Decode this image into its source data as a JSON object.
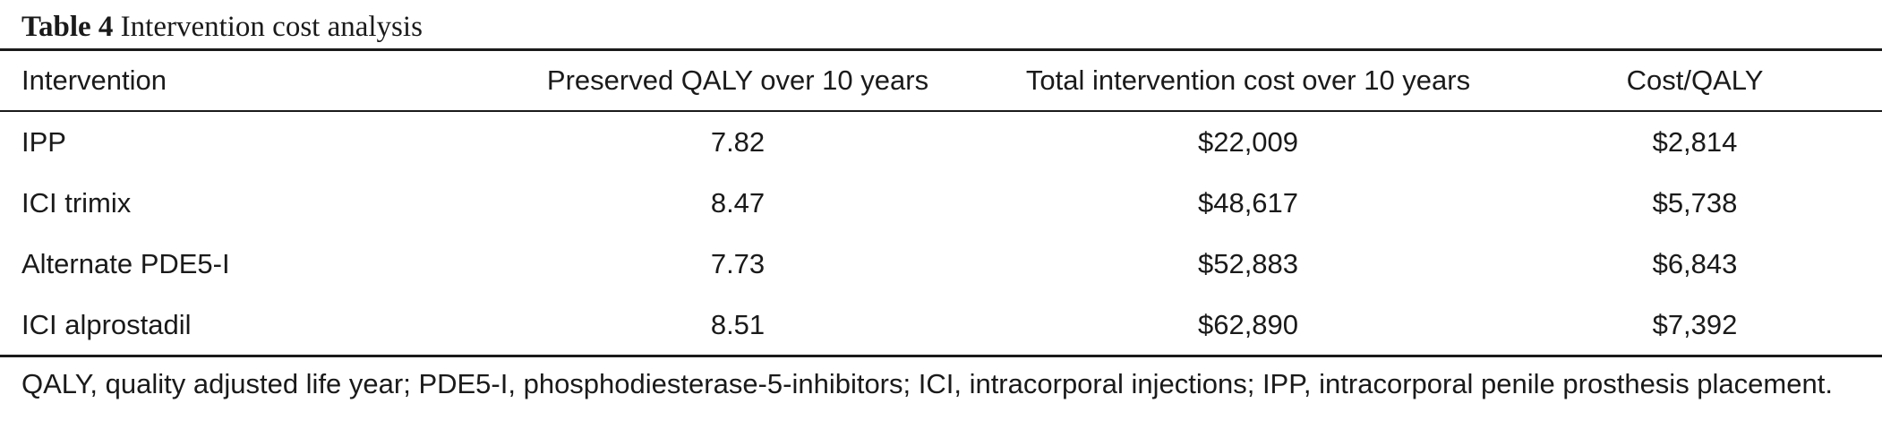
{
  "caption": {
    "label": "Table 4",
    "title": "Intervention cost analysis"
  },
  "table": {
    "headers": [
      "Intervention",
      "Preserved QALY over 10 years",
      "Total intervention cost over 10 years",
      "Cost/QALY"
    ],
    "rows": [
      [
        "IPP",
        "7.82",
        "$22,009",
        "$2,814"
      ],
      [
        "ICI trimix",
        "8.47",
        "$48,617",
        "$5,738"
      ],
      [
        "Alternate PDE5-I",
        "7.73",
        "$52,883",
        "$6,843"
      ],
      [
        "ICI alprostadil",
        "8.51",
        "$62,890",
        "$7,392"
      ]
    ]
  },
  "footnote": "QALY, quality adjusted life year; PDE5-I, phosphodiesterase-5-inhibitors; ICI, intracorporal injections; IPP, intracorporal penile prosthesis placement."
}
